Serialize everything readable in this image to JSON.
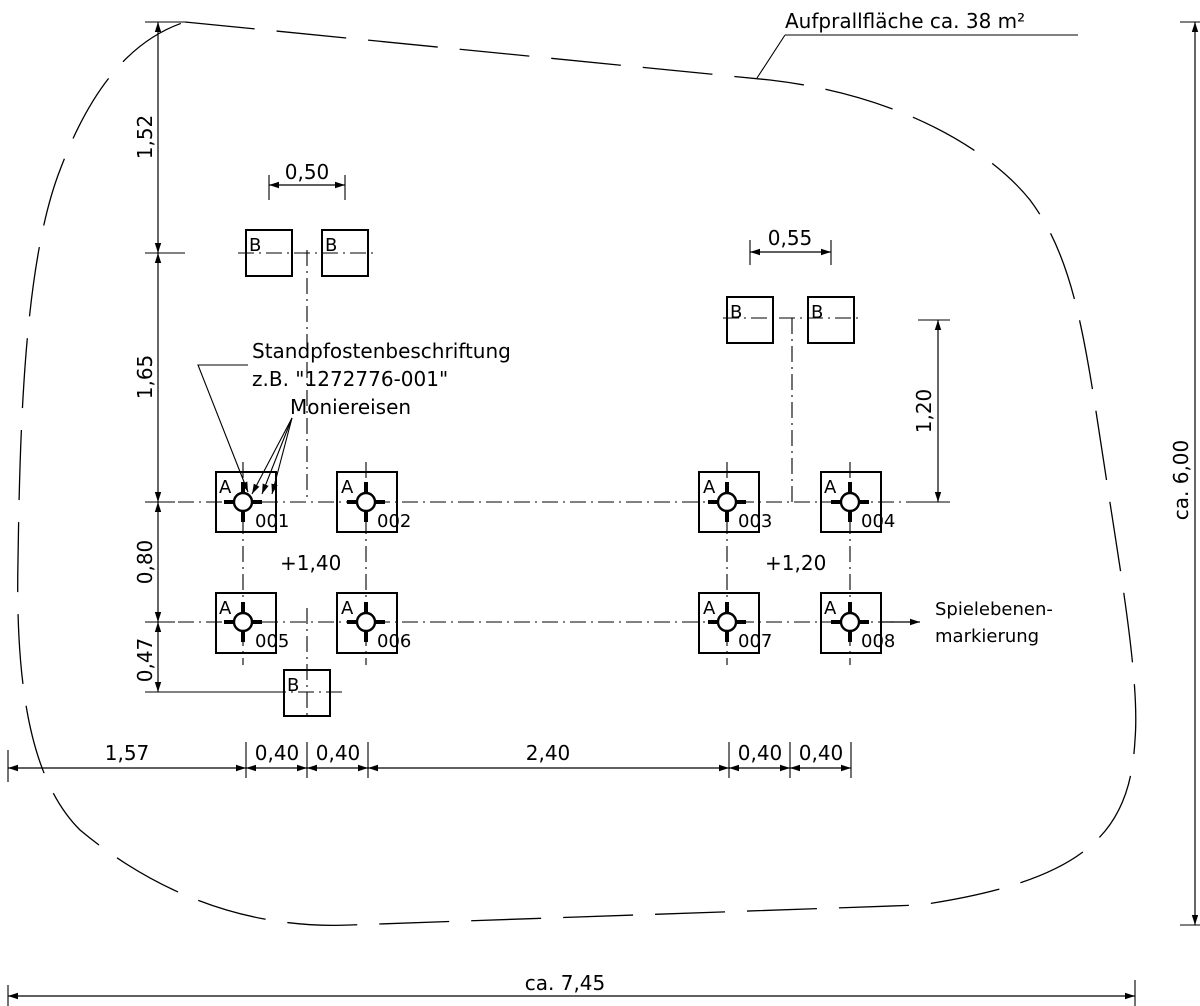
{
  "labels": {
    "impact_area": "Aufprallfläche ca. 38 m²",
    "post_label_line1": "Standpfostenbeschriftung",
    "post_label_line2": "z.B. \"1272776-001\"",
    "rebar": "Moniereisen",
    "level_marking_line1": "Spielebenen-",
    "level_marking_line2": "markierung",
    "height_left": "+1,40",
    "height_right": "+1,20"
  },
  "dimensions": {
    "v_top": "1,52",
    "v_mid": "1,65",
    "v_row": "0,80",
    "v_bottom": "0,47",
    "width_b_left": "0,50",
    "width_b_right": "0,55",
    "v_right": "1,20",
    "total_height": "ca. 6,00",
    "h_1": "1,57",
    "h_2": "0,40",
    "h_3": "0,40",
    "h_4": "2,40",
    "h_5": "0,40",
    "h_6": "0,40",
    "total_width": "ca. 7,45"
  },
  "posts": [
    {
      "type": "A",
      "number": "001"
    },
    {
      "type": "A",
      "number": "002"
    },
    {
      "type": "A",
      "number": "003"
    },
    {
      "type": "A",
      "number": "004"
    },
    {
      "type": "A",
      "number": "005"
    },
    {
      "type": "A",
      "number": "006"
    },
    {
      "type": "A",
      "number": "007"
    },
    {
      "type": "A",
      "number": "008"
    }
  ],
  "b_markers": [
    "B",
    "B",
    "B",
    "B",
    "B"
  ]
}
